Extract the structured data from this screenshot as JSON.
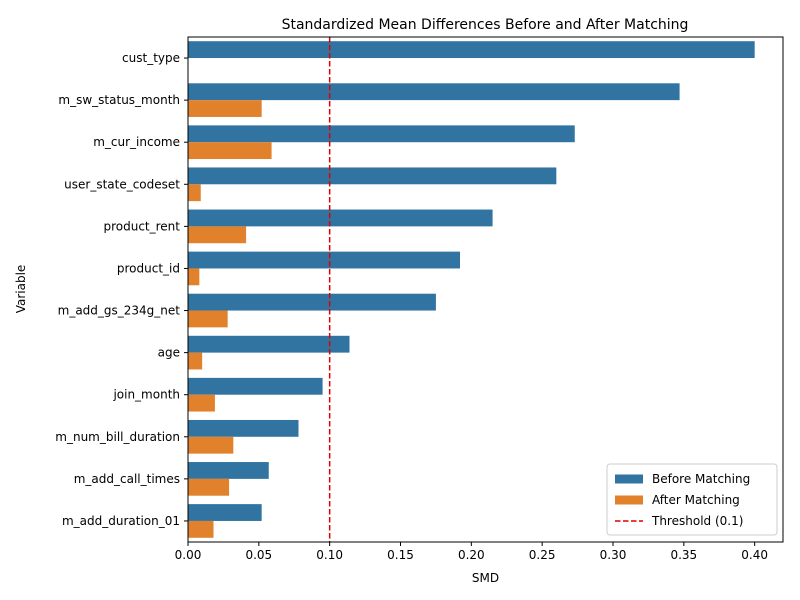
{
  "chart_data": {
    "type": "bar",
    "orientation": "horizontal",
    "title": "Standardized Mean Differences Before and After Matching",
    "xlabel": "SMD",
    "ylabel": "Variable",
    "xlim": [
      0.0,
      0.42
    ],
    "xticks": [
      0.0,
      0.05,
      0.1,
      0.15,
      0.2,
      0.25,
      0.3,
      0.35,
      0.4
    ],
    "xtick_labels": [
      "0.00",
      "0.05",
      "0.10",
      "0.15",
      "0.20",
      "0.25",
      "0.30",
      "0.35",
      "0.40"
    ],
    "grid": false,
    "legend_position": "lower-right",
    "categories": [
      "cust_type",
      "m_sw_status_month",
      "m_cur_income",
      "user_state_codeset",
      "product_rent",
      "product_id",
      "m_add_gs_234g_net",
      "age",
      "join_month",
      "m_num_bill_duration",
      "m_add_call_times",
      "m_add_duration_01"
    ],
    "series": [
      {
        "name": "Before Matching",
        "color": "#3274a1",
        "values": [
          0.4,
          0.347,
          0.273,
          0.26,
          0.215,
          0.192,
          0.175,
          0.114,
          0.095,
          0.078,
          0.057,
          0.052
        ]
      },
      {
        "name": "After Matching",
        "color": "#e1812c",
        "values": [
          0.0,
          0.052,
          0.059,
          0.009,
          0.041,
          0.008,
          0.028,
          0.01,
          0.019,
          0.032,
          0.029,
          0.018
        ]
      }
    ],
    "reference_line": {
      "name": "Threshold (0.1)",
      "value": 0.1,
      "color": "#e00000"
    }
  }
}
